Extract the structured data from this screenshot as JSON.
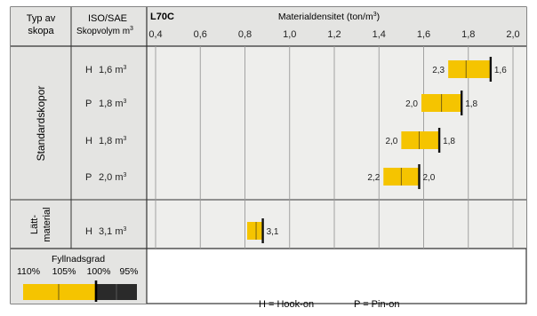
{
  "header": {
    "col1_line1": "Typ av",
    "col1_line2": "skopa",
    "col2_line1": "ISO/SAE",
    "col2_line2": "Skopvolym m",
    "col2_sup": "3",
    "model": "L70C",
    "axis_title": "Materialdensitet  (ton/m",
    "axis_title_sup": "3",
    "axis_title_end": ")"
  },
  "groups": {
    "standard": "Standardskopor",
    "light_line1": "Lätt-",
    "light_line2": "material"
  },
  "fill_legend": {
    "title": "Fyllnadsgrad",
    "labels": [
      "110%",
      "105%",
      "100%",
      "95%"
    ]
  },
  "key": {
    "hook": "H = Hook-on",
    "pin": "P = Pin-on"
  },
  "colors": {
    "grid_bg": "#eeeeec",
    "header_bg": "#e4e4e2",
    "bar_fill": "#f5c400",
    "legend_dark": "#2a2a2a",
    "line": "#333333"
  },
  "chart_data": {
    "type": "range-bar",
    "title": "L70C",
    "xlabel": "Materialdensitet (ton/m3)",
    "xlim": [
      0.4,
      2.0
    ],
    "xticks": [
      "0,4",
      "0,6",
      "0,8",
      "1,0",
      "1,2",
      "1,4",
      "1,6",
      "1,8",
      "2,0"
    ],
    "xtick_values": [
      0.4,
      0.6,
      0.8,
      1.0,
      1.2,
      1.4,
      1.6,
      1.8,
      2.0
    ],
    "rows": [
      {
        "type": "H",
        "volume": "1,6 m",
        "unit_sup": "3",
        "group": "Standardskopor",
        "low": 1.71,
        "mid": 1.79,
        "high": 1.9,
        "low_label": "2,3",
        "high_label": "1,6"
      },
      {
        "type": "P",
        "volume": "1,8 m",
        "unit_sup": "3",
        "group": "Standardskopor",
        "low": 1.59,
        "mid": 1.68,
        "high": 1.77,
        "low_label": "2,0",
        "high_label": "1,8"
      },
      {
        "type": "H",
        "volume": "1,8 m",
        "unit_sup": "3",
        "group": "Standardskopor",
        "low": 1.5,
        "mid": 1.58,
        "high": 1.67,
        "low_label": "2,0",
        "high_label": "1,8"
      },
      {
        "type": "P",
        "volume": "2,0 m",
        "unit_sup": "3",
        "group": "Standardskopor",
        "low": 1.42,
        "mid": 1.5,
        "high": 1.58,
        "low_label": "2,2",
        "high_label": "2,0"
      },
      {
        "type": "H",
        "volume": "3,1 m",
        "unit_sup": "3",
        "group": "Lätt-material",
        "low": 0.81,
        "mid": 0.85,
        "high": 0.88,
        "low_label": "",
        "high_label": "3,1"
      }
    ]
  }
}
